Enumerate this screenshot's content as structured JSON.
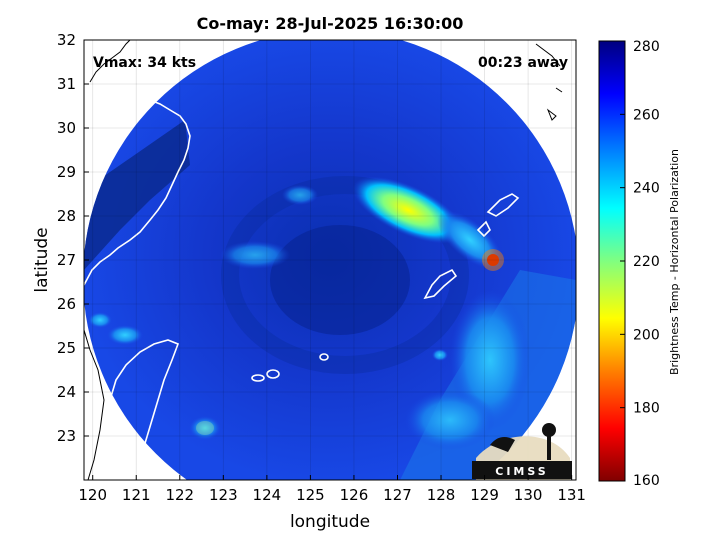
{
  "chart_data": {
    "type": "heatmap",
    "title": "Co-may: 28-Jul-2025 16:30:00",
    "xlabel": "longitude",
    "ylabel": "latitude",
    "xlim": [
      119.8,
      131.1
    ],
    "ylim": [
      22,
      32
    ],
    "x_ticks": [
      "120",
      "121",
      "122",
      "123",
      "124",
      "125",
      "126",
      "127",
      "128",
      "129",
      "130",
      "131"
    ],
    "y_ticks": [
      "23",
      "24",
      "25",
      "26",
      "27",
      "28",
      "29",
      "30",
      "31",
      "32"
    ],
    "grid": true,
    "annotations": {
      "vmax": "Vmax: 34 kts",
      "away": "00:23 away"
    },
    "colorbar": {
      "label": "Brightness Temp - Horizontal Polarization",
      "range": [
        160,
        280
      ],
      "ticks": [
        "280",
        "260",
        "240",
        "220",
        "200",
        "180",
        "160"
      ],
      "colormap": "jet",
      "colors": [
        "#800000",
        "#ff0000",
        "#ff8000",
        "#ffff00",
        "#80ff80",
        "#00ffff",
        "#0080ff",
        "#0000ff",
        "#000080"
      ]
    },
    "swath": {
      "center": [
        125.4,
        26.8
      ],
      "background_colors": [
        "#0f3fd8",
        "#1540e0",
        "#0a2fb0"
      ]
    },
    "features": [
      {
        "name": "eye-region",
        "lon": 125.8,
        "lat": 26.8,
        "value": 268
      },
      {
        "name": "rainband-northeast",
        "lon": 127.3,
        "lat": 28.1,
        "value": 205
      },
      {
        "name": "hotspot-east",
        "lon": 129.2,
        "lat": 26.9,
        "value": 175
      },
      {
        "name": "rainband-east",
        "lon": 128.8,
        "lat": 25.5,
        "value": 240
      },
      {
        "name": "west-band",
        "lon": 121.5,
        "lat": 24.9,
        "value": 245
      },
      {
        "name": "south-patch",
        "lon": 122.6,
        "lat": 23.2,
        "value": 230
      }
    ]
  },
  "logo": {
    "text": "CIMSS"
  }
}
